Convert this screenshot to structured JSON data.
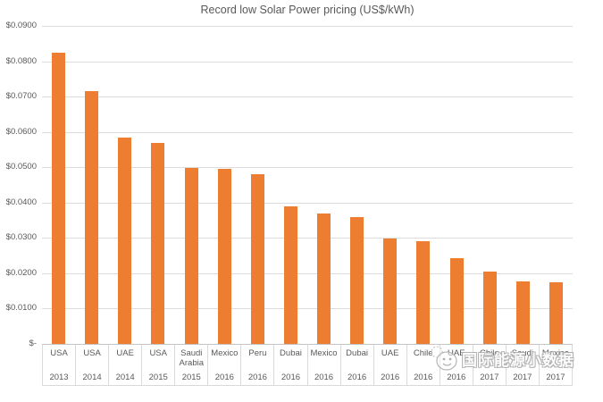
{
  "watermark": {
    "icon": "chick-mascot-icon",
    "text": "国际能源小数据"
  },
  "colors": {
    "bar": "#ED7D31",
    "gridline": "#DCDCDC",
    "axis_text": "#595959",
    "table_border": "#D9D9D9"
  },
  "chart_data": {
    "type": "bar",
    "title": "Record low Solar Power pricing (US$/kWh)",
    "categories": [
      "USA",
      "USA",
      "UAE",
      "USA",
      "Saudi Arabia",
      "Mexico",
      "Peru",
      "Dubai",
      "Mexico",
      "Dubai",
      "UAE",
      "Chile",
      "UAE",
      "Chile",
      "Saudi",
      "Mexico"
    ],
    "years": [
      "2013",
      "2014",
      "2014",
      "2015",
      "2015",
      "2016",
      "2016",
      "2016",
      "2016",
      "2016",
      "2016",
      "2016",
      "2016",
      "2017",
      "2017",
      "2017"
    ],
    "values": [
      0.0825,
      0.0715,
      0.0585,
      0.057,
      0.0497,
      0.0495,
      0.048,
      0.039,
      0.037,
      0.036,
      0.0299,
      0.0291,
      0.0242,
      0.0205,
      0.0178,
      0.0175
    ],
    "ylim": [
      0,
      0.09
    ],
    "y_ticks": [
      {
        "value": 0.0,
        "label": "$-"
      },
      {
        "value": 0.01,
        "label": "$0.0100"
      },
      {
        "value": 0.02,
        "label": "$0.0200"
      },
      {
        "value": 0.03,
        "label": "$0.0300"
      },
      {
        "value": 0.04,
        "label": "$0.0400"
      },
      {
        "value": 0.05,
        "label": "$0.0500"
      },
      {
        "value": 0.06,
        "label": "$0.0600"
      },
      {
        "value": 0.07,
        "label": "$0.0700"
      },
      {
        "value": 0.08,
        "label": "$0.0800"
      },
      {
        "value": 0.09,
        "label": "$0.0900"
      }
    ],
    "grid": true,
    "legend": false,
    "xlabel": "",
    "ylabel": ""
  }
}
